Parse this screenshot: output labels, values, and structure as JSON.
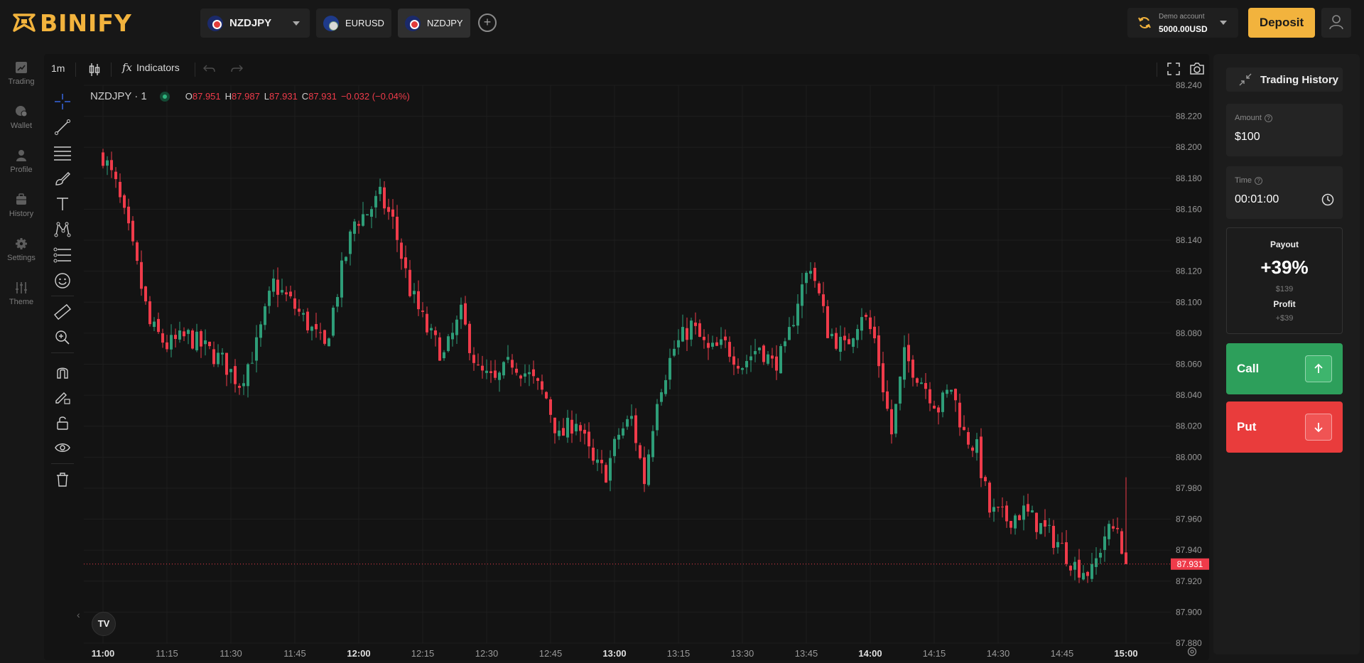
{
  "brand": {
    "name": "BINIFY",
    "logo_icon": "binify-logo-icon",
    "accent": "#f2b33d"
  },
  "asset_tabs": [
    {
      "label": "NZDJPY",
      "flag": "nz-flag-icon",
      "active": true,
      "has_dropdown": true
    },
    {
      "label": "EURUSD",
      "flag": "eu-flag-icon",
      "active": false
    },
    {
      "label": "NZDJPY",
      "flag": "nz-flag-icon",
      "active": false
    }
  ],
  "add_tab_label": "+",
  "account": {
    "label": "Demo account",
    "balance": "5000.00USD"
  },
  "deposit_label": "Deposit",
  "sidebar": {
    "items": [
      {
        "label": "Trading",
        "icon": "chart-icon"
      },
      {
        "label": "Wallet",
        "icon": "wallet-icon"
      },
      {
        "label": "Profile",
        "icon": "profile-icon"
      },
      {
        "label": "History",
        "icon": "history-icon"
      },
      {
        "label": "Settings",
        "icon": "gear-icon"
      },
      {
        "label": "Theme",
        "icon": "sliders-icon"
      }
    ]
  },
  "chart_toolbar": {
    "timeframe": "1m",
    "indicators_fx": "fx",
    "indicators_label": "Indicators"
  },
  "legend": {
    "symbol": "NZDJPY · 1",
    "o_key": "O",
    "open": "87.951",
    "h_key": "H",
    "high": "87.987",
    "l_key": "L",
    "low": "87.931",
    "c_key": "C",
    "close": "87.931",
    "change": "−0.032 (−0.04%)"
  },
  "tradingview_label": "TV",
  "colors": {
    "up": "#2e9d78",
    "down": "#ef3b4a",
    "price_tag": "#ef3b4a",
    "background": "#131313"
  },
  "chart_data": {
    "type": "candlestick",
    "symbol": "NZDJPY",
    "timeframe": "1m",
    "y_ticks": [
      "88.240",
      "88.220",
      "88.200",
      "88.180",
      "88.160",
      "88.140",
      "88.120",
      "88.100",
      "88.080",
      "88.060",
      "88.040",
      "88.020",
      "88.000",
      "87.980",
      "87.960",
      "87.940",
      "87.920",
      "87.900",
      "87.880"
    ],
    "x_ticks": [
      {
        "label": "11:00",
        "bold": true
      },
      {
        "label": "11:15",
        "bold": false
      },
      {
        "label": "11:30",
        "bold": false
      },
      {
        "label": "11:45",
        "bold": false
      },
      {
        "label": "12:00",
        "bold": true
      },
      {
        "label": "12:15",
        "bold": false
      },
      {
        "label": "12:30",
        "bold": false
      },
      {
        "label": "12:45",
        "bold": false
      },
      {
        "label": "13:00",
        "bold": true
      },
      {
        "label": "13:15",
        "bold": false
      },
      {
        "label": "13:30",
        "bold": false
      },
      {
        "label": "13:45",
        "bold": false
      },
      {
        "label": "14:00",
        "bold": true
      },
      {
        "label": "14:15",
        "bold": false
      },
      {
        "label": "14:30",
        "bold": false
      },
      {
        "label": "14:45",
        "bold": false
      },
      {
        "label": "15:00",
        "bold": true
      }
    ],
    "ylim": [
      87.88,
      88.24
    ],
    "current_price": "87.931",
    "close_path": [
      [
        "11:00",
        88.195
      ],
      [
        "11:03",
        88.175
      ],
      [
        "11:06",
        88.145
      ],
      [
        "11:08",
        88.122
      ],
      [
        "11:11",
        88.085
      ],
      [
        "11:15",
        88.072
      ],
      [
        "11:20",
        88.078
      ],
      [
        "11:24",
        88.07
      ],
      [
        "11:28",
        88.062
      ],
      [
        "11:32",
        88.048
      ],
      [
        "11:36",
        88.072
      ],
      [
        "11:40",
        88.112
      ],
      [
        "11:44",
        88.1
      ],
      [
        "11:48",
        88.086
      ],
      [
        "11:52",
        88.07
      ],
      [
        "11:56",
        88.12
      ],
      [
        "11:59",
        88.152
      ],
      [
        "12:02",
        88.158
      ],
      [
        "12:05",
        88.168
      ],
      [
        "12:08",
        88.152
      ],
      [
        "12:12",
        88.108
      ],
      [
        "12:16",
        88.082
      ],
      [
        "12:20",
        88.065
      ],
      [
        "12:24",
        88.092
      ],
      [
        "12:28",
        88.055
      ],
      [
        "12:32",
        88.048
      ],
      [
        "12:36",
        88.062
      ],
      [
        "12:40",
        88.052
      ],
      [
        "12:44",
        88.038
      ],
      [
        "12:47",
        88.012
      ],
      [
        "12:51",
        88.025
      ],
      [
        "12:55",
        87.995
      ],
      [
        "12:58",
        87.99
      ],
      [
        "13:01",
        88.015
      ],
      [
        "13:04",
        88.025
      ],
      [
        "13:07",
        87.985
      ],
      [
        "13:10",
        88.04
      ],
      [
        "13:14",
        88.07
      ],
      [
        "13:18",
        88.085
      ],
      [
        "13:22",
        88.068
      ],
      [
        "13:26",
        88.072
      ],
      [
        "13:30",
        88.06
      ],
      [
        "13:34",
        88.072
      ],
      [
        "13:37",
        88.06
      ],
      [
        "13:40",
        88.068
      ],
      [
        "13:43",
        88.102
      ],
      [
        "13:46",
        88.125
      ],
      [
        "13:50",
        88.082
      ],
      [
        "13:54",
        88.07
      ],
      [
        "13:58",
        88.094
      ],
      [
        "14:01",
        88.076
      ],
      [
        "14:05",
        88.015
      ],
      [
        "14:08",
        88.065
      ],
      [
        "14:12",
        88.05
      ],
      [
        "14:16",
        88.032
      ],
      [
        "14:19",
        88.045
      ],
      [
        "14:22",
        88.015
      ],
      [
        "14:25",
        88.005
      ],
      [
        "14:28",
        87.965
      ],
      [
        "14:32",
        87.96
      ],
      [
        "14:36",
        87.965
      ],
      [
        "14:40",
        87.955
      ],
      [
        "14:44",
        87.945
      ],
      [
        "14:48",
        87.93
      ],
      [
        "14:52",
        87.925
      ],
      [
        "14:55",
        87.95
      ],
      [
        "14:58",
        87.955
      ],
      [
        "15:00",
        87.931
      ]
    ]
  },
  "panel": {
    "trading_history_label": "Trading History",
    "amount_label": "Amount",
    "amount_value": "$100",
    "time_label": "Time",
    "time_value": "00:01:00",
    "help_glyph": "?",
    "payout_label": "Payout",
    "payout_pct": "+39%",
    "payout_amount": "$139",
    "profit_label": "Profit",
    "profit_amount": "+$39",
    "call_label": "Call",
    "put_label": "Put"
  }
}
